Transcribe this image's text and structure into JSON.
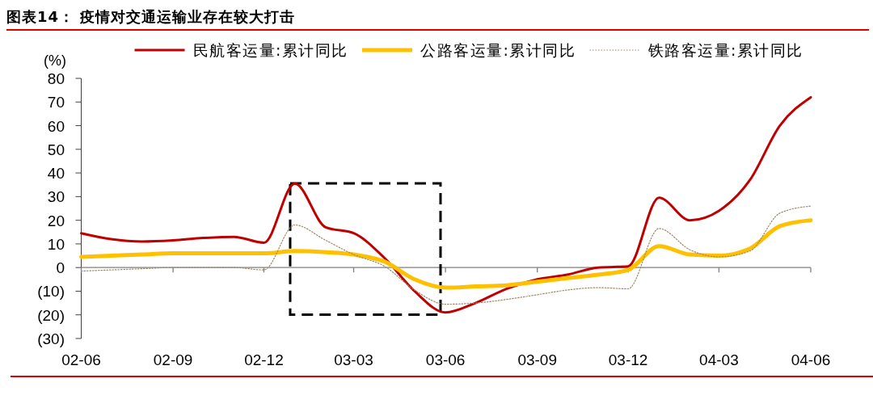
{
  "chart_data": {
    "type": "line",
    "title": "图表14： 疫情对交通运输业存在较大打击",
    "ylabel": "(%)",
    "x": [
      "2002-06",
      "2002-07",
      "2002-08",
      "2002-09",
      "2002-10",
      "2002-11",
      "2002-12",
      "2003-01",
      "2003-02",
      "2003-03",
      "2003-04",
      "2003-05",
      "2003-06",
      "2003-07",
      "2003-08",
      "2003-09",
      "2003-10",
      "2003-11",
      "2003-12",
      "2004-01",
      "2004-02",
      "2004-03",
      "2004-04",
      "2004-05",
      "2004-06"
    ],
    "series": [
      {
        "name": "民航客运量:累计同比",
        "color": "#c00000",
        "values": [
          14.5,
          12,
          11,
          11.5,
          12.5,
          13,
          10.5,
          35.5,
          17,
          14.5,
          4,
          -10,
          -19,
          -15,
          -9,
          -5,
          -3,
          0,
          0.5,
          29.5,
          20,
          24,
          37,
          60,
          72
        ]
      },
      {
        "name": "公路客运量:累计同比",
        "color": "#ffc000",
        "values": [
          4.5,
          5,
          5.5,
          6,
          6,
          6,
          6,
          7,
          6.5,
          5.5,
          2.5,
          -5,
          -8.5,
          -8,
          -7.5,
          -6,
          -4.5,
          -3,
          -1,
          9,
          5.5,
          5,
          8,
          17.5,
          20
        ]
      },
      {
        "name": "铁路客运量:累计同比",
        "color": "#9e8a6a",
        "line_style": "dotted",
        "values": [
          -1.5,
          -1,
          -0.5,
          0,
          0,
          0,
          -1,
          18,
          11.5,
          5.5,
          0.5,
          -9.5,
          -15.5,
          -15,
          -13.5,
          -11.5,
          -9.5,
          -8.5,
          -9,
          16.5,
          7.5,
          4.5,
          7,
          23,
          26
        ]
      }
    ],
    "xlim": [
      "2002-06",
      "2004-06"
    ],
    "xticks": [
      {
        "value": "2002-06",
        "label": "02-06"
      },
      {
        "value": "2002-09",
        "label": "02-09"
      },
      {
        "value": "2002-12",
        "label": "02-12"
      },
      {
        "value": "2003-03",
        "label": "03-03"
      },
      {
        "value": "2003-06",
        "label": "03-06"
      },
      {
        "value": "2003-09",
        "label": "03-09"
      },
      {
        "value": "2003-12",
        "label": "03-12"
      },
      {
        "value": "2004-03",
        "label": "04-03"
      },
      {
        "value": "2004-06",
        "label": "04-06"
      }
    ],
    "ylim": [
      -30,
      80
    ],
    "yticks": [
      {
        "value": -30,
        "label": "(30)"
      },
      {
        "value": -20,
        "label": "(20)"
      },
      {
        "value": -10,
        "label": "(10)"
      },
      0,
      10,
      20,
      30,
      40,
      50,
      60,
      70,
      80
    ],
    "legend": "top",
    "line_style": "solid"
  }
}
